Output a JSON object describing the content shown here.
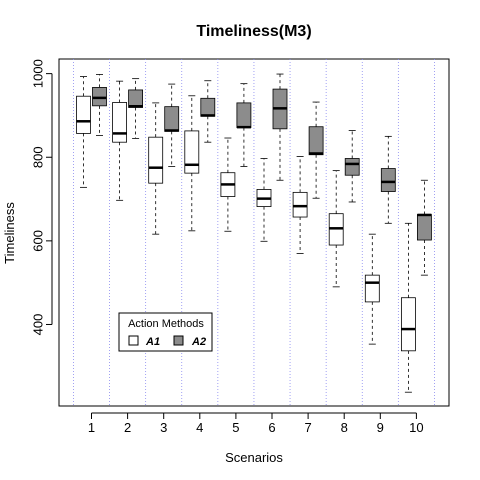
{
  "chart_data": {
    "type": "boxplot",
    "title": "Timeliness(M3)",
    "xlabel": "Scenarios",
    "ylabel": "Timeliness",
    "categories": [
      "1",
      "2",
      "3",
      "4",
      "5",
      "6",
      "7",
      "8",
      "9",
      "10"
    ],
    "ylim": [
      205,
      1035
    ],
    "yticks": [
      400,
      600,
      800,
      1000
    ],
    "grid": "dotted vertical separators between scenarios",
    "legend": {
      "title": "Action Methods",
      "position": "bottom-left",
      "entries": [
        {
          "label": "A1",
          "color": "#ffffff"
        },
        {
          "label": "A2",
          "color": "#8c8c8c"
        }
      ]
    },
    "series": [
      {
        "name": "A1",
        "color": "#ffffff",
        "boxes": [
          {
            "min": 728,
            "q1": 857,
            "median": 886,
            "q3": 946,
            "max": 993
          },
          {
            "min": 697,
            "q1": 836,
            "median": 857,
            "q3": 931,
            "max": 982
          },
          {
            "min": 616,
            "q1": 738,
            "median": 775,
            "q3": 848,
            "max": 930
          },
          {
            "min": 624,
            "q1": 762,
            "median": 782,
            "q3": 863,
            "max": 947
          },
          {
            "min": 623,
            "q1": 706,
            "median": 735,
            "q3": 763,
            "max": 846
          },
          {
            "min": 599,
            "q1": 682,
            "median": 701,
            "q3": 723,
            "max": 797
          },
          {
            "min": 570,
            "q1": 657,
            "median": 683,
            "q3": 716,
            "max": 802
          },
          {
            "min": 490,
            "q1": 590,
            "median": 630,
            "q3": 665,
            "max": 768
          },
          {
            "min": 353,
            "q1": 454,
            "median": 500,
            "q3": 518,
            "max": 616
          },
          {
            "min": 238,
            "q1": 337,
            "median": 389,
            "q3": 464,
            "max": 642
          }
        ]
      },
      {
        "name": "A2",
        "color": "#8c8c8c",
        "boxes": [
          {
            "min": 852,
            "q1": 923,
            "median": 942,
            "q3": 967,
            "max": 998
          },
          {
            "min": 845,
            "q1": 919,
            "median": 922,
            "q3": 961,
            "max": 988
          },
          {
            "min": 778,
            "q1": 862,
            "median": 864,
            "q3": 921,
            "max": 975
          },
          {
            "min": 836,
            "q1": 898,
            "median": 900,
            "q3": 941,
            "max": 983
          },
          {
            "min": 778,
            "q1": 871,
            "median": 872,
            "q3": 930,
            "max": 976
          },
          {
            "min": 745,
            "q1": 868,
            "median": 917,
            "q3": 963,
            "max": 999
          },
          {
            "min": 702,
            "q1": 806,
            "median": 809,
            "q3": 873,
            "max": 932
          },
          {
            "min": 693,
            "q1": 757,
            "median": 784,
            "q3": 797,
            "max": 864
          },
          {
            "min": 642,
            "q1": 718,
            "median": 741,
            "q3": 773,
            "max": 850
          },
          {
            "min": 518,
            "q1": 602,
            "median": 662,
            "q3": 663,
            "max": 745
          }
        ]
      }
    ]
  }
}
